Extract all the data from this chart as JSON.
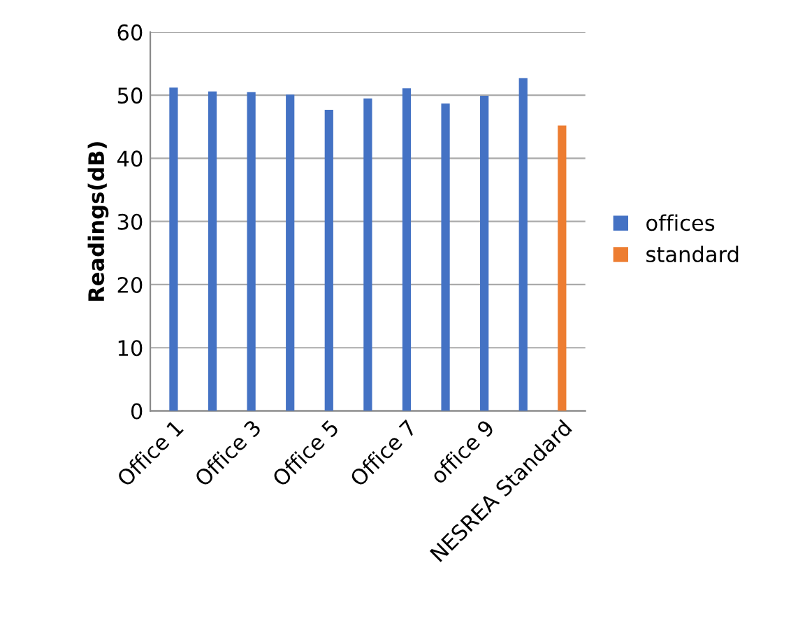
{
  "chart_data": {
    "type": "bar",
    "ylabel": "Readings(dB)",
    "categories": [
      "Office 1",
      null,
      "Office 3",
      null,
      "Office 5",
      null,
      "Office 7",
      null,
      "office 9",
      null,
      "NESREA Standard"
    ],
    "series": [
      {
        "name": "offices",
        "color": "#4472c4",
        "values": [
          51.2,
          50.6,
          50.5,
          50.1,
          47.7,
          49.5,
          51.1,
          48.7,
          49.9,
          52.7,
          null
        ]
      },
      {
        "name": "standard",
        "color": "#ed7d31",
        "values": [
          null,
          null,
          null,
          null,
          null,
          null,
          null,
          null,
          null,
          null,
          45.2
        ]
      }
    ],
    "ylim": [
      0,
      60
    ],
    "yticks": [
      0,
      10,
      20,
      30,
      40,
      50,
      60
    ],
    "grid": "y",
    "legend": "right"
  }
}
